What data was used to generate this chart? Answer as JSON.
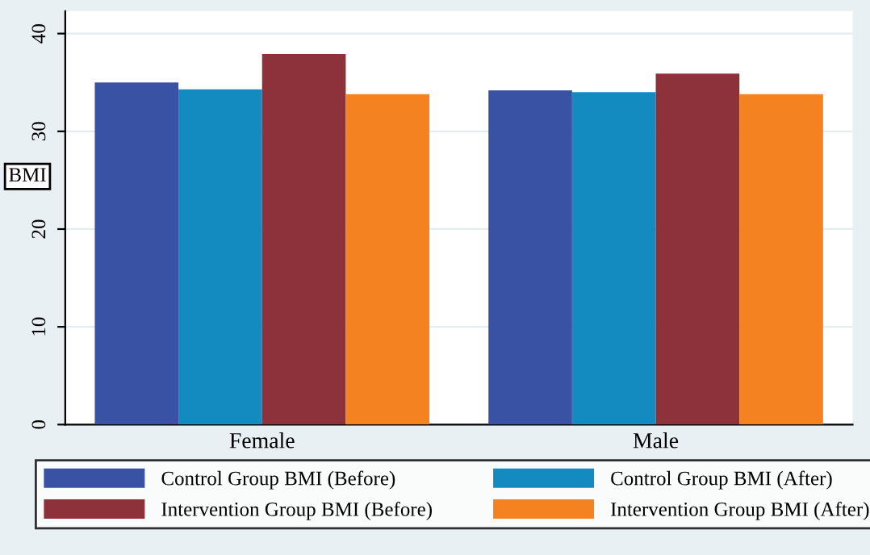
{
  "chart_data": {
    "type": "bar",
    "categories": [
      "Female",
      "Male"
    ],
    "ylabel": "BMI",
    "series": [
      {
        "name": "Control Group BMI (Before)",
        "color": "#3a52a4",
        "values": [
          35.0,
          34.2
        ]
      },
      {
        "name": "Control Group BMI (After)",
        "color": "#138bc1",
        "values": [
          34.3,
          34.0
        ]
      },
      {
        "name": "Intervention Group BMI (Before)",
        "color": "#8d313a",
        "values": [
          37.9,
          35.9
        ]
      },
      {
        "name": "Intervention Group BMI (After)",
        "color": "#f58220",
        "values": [
          33.8,
          33.8
        ]
      }
    ],
    "ylim": [
      0,
      42.3
    ],
    "yticks": [
      0,
      10,
      20,
      30,
      40
    ],
    "grid": "y",
    "legend": "bottom"
  }
}
